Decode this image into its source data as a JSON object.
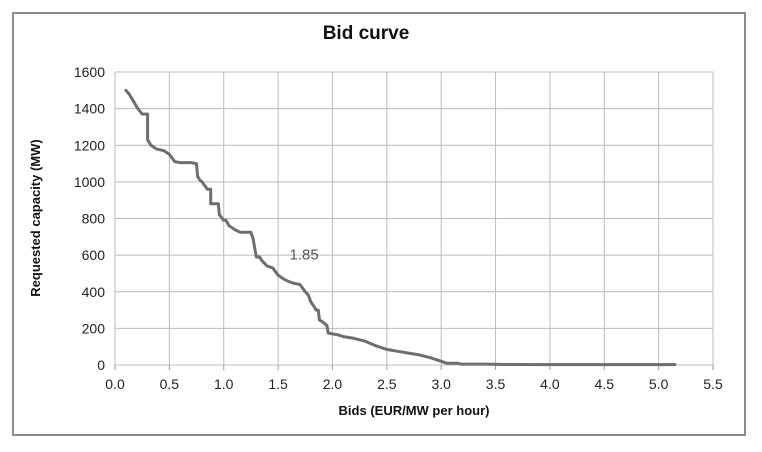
{
  "chart_data": {
    "type": "line",
    "title": "Bid curve",
    "xlabel": "Bids (EUR/MW per hour)",
    "ylabel": "Requested capacity (MW)",
    "xlim": [
      0.0,
      5.5
    ],
    "ylim": [
      0,
      1600
    ],
    "x_ticks": [
      "0.0",
      "0.5",
      "1.0",
      "1.5",
      "2.0",
      "2.5",
      "3.0",
      "3.5",
      "4.0",
      "4.5",
      "5.0",
      "5.5"
    ],
    "y_ticks": [
      "0",
      "200",
      "400",
      "600",
      "800",
      "1000",
      "1200",
      "1400",
      "1600"
    ],
    "grid": true,
    "legend": "none",
    "line_color": "#6e6e6e",
    "annotation": {
      "text": "1.85",
      "x": 1.85,
      "y": 455
    },
    "series": [
      {
        "x": [
          0.1,
          0.13,
          0.17,
          0.21,
          0.25,
          0.3,
          0.3,
          0.33,
          0.38,
          0.45,
          0.5,
          0.55,
          0.6,
          0.7,
          0.75,
          0.76,
          0.78,
          0.8,
          0.85,
          0.88,
          0.88,
          0.95,
          0.96,
          1.0,
          1.02,
          1.05,
          1.1,
          1.15,
          1.2,
          1.25,
          1.27,
          1.3,
          1.33,
          1.35,
          1.4,
          1.45,
          1.5,
          1.55,
          1.6,
          1.65,
          1.7,
          1.75,
          1.78,
          1.8,
          1.83,
          1.85,
          1.87,
          1.88,
          1.9,
          1.95,
          1.96,
          2.0,
          2.05,
          2.1,
          2.2,
          2.3,
          2.4,
          2.5,
          2.55,
          2.6,
          2.7,
          2.8,
          2.9,
          3.0,
          3.05,
          3.15,
          3.18,
          3.4,
          3.6,
          4.0,
          4.5,
          5.15
        ],
        "y": [
          1500,
          1480,
          1440,
          1400,
          1370,
          1370,
          1230,
          1200,
          1180,
          1170,
          1150,
          1110,
          1105,
          1105,
          1100,
          1030,
          1010,
          1000,
          960,
          960,
          880,
          880,
          820,
          790,
          790,
          760,
          740,
          725,
          725,
          725,
          690,
          590,
          590,
          570,
          540,
          530,
          490,
          470,
          455,
          445,
          440,
          400,
          380,
          345,
          320,
          300,
          300,
          245,
          240,
          215,
          175,
          170,
          165,
          155,
          145,
          130,
          105,
          85,
          80,
          75,
          65,
          55,
          40,
          20,
          10,
          10,
          5,
          5,
          3,
          2,
          2,
          2
        ]
      }
    ]
  }
}
